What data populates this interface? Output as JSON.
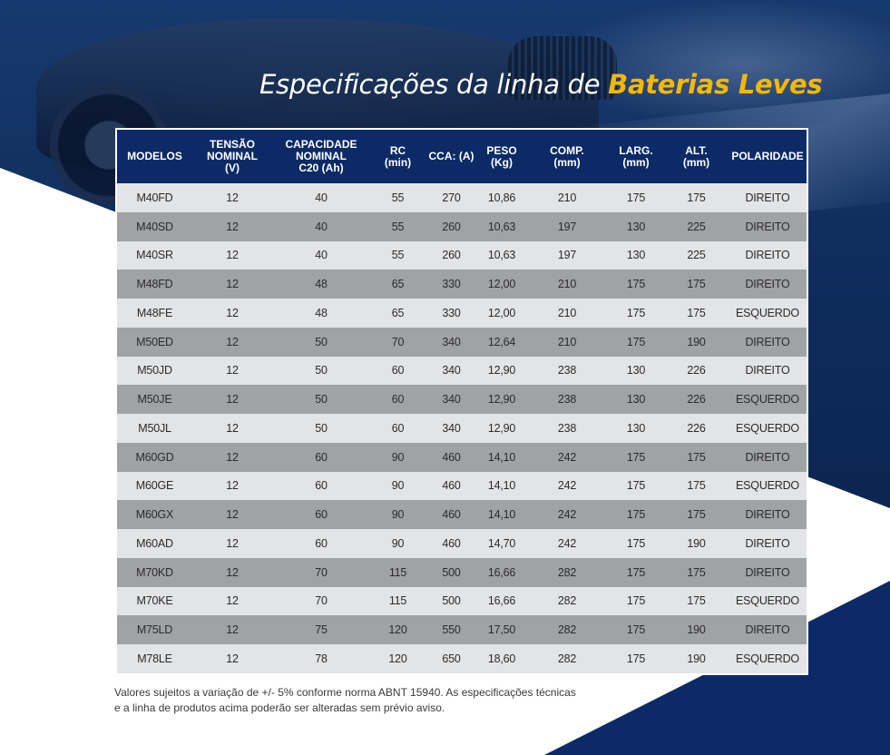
{
  "title": {
    "prefix": "Especificações da linha de",
    "highlight": "Baterias Leves"
  },
  "colors": {
    "navy": "#0b2a66",
    "accent": "#f5b800",
    "row_light": "#e3e4e6",
    "row_dark": "#a0a2a6"
  },
  "table": {
    "headers": [
      "MODELOS",
      "TENSÃO\nNOMINAL\n(V)",
      "CAPACIDADE\nNOMINAL\nC20 (Ah)",
      "RC\n(min)",
      "CCA: (A)",
      "PESO\n(Kg)",
      "COMP.\n(mm)",
      "LARG.\n(mm)",
      "ALT.\n(mm)",
      "POLARIDADE"
    ],
    "rows": [
      [
        "M40FD",
        "12",
        "40",
        "55",
        "270",
        "10,86",
        "210",
        "175",
        "175",
        "DIREITO"
      ],
      [
        "M40SD",
        "12",
        "40",
        "55",
        "260",
        "10,63",
        "197",
        "130",
        "225",
        "DIREITO"
      ],
      [
        "M40SR",
        "12",
        "40",
        "55",
        "260",
        "10,63",
        "197",
        "130",
        "225",
        "DIREITO"
      ],
      [
        "M48FD",
        "12",
        "48",
        "65",
        "330",
        "12,00",
        "210",
        "175",
        "175",
        "DIREITO"
      ],
      [
        "M48FE",
        "12",
        "48",
        "65",
        "330",
        "12,00",
        "210",
        "175",
        "175",
        "ESQUERDO"
      ],
      [
        "M50ED",
        "12",
        "50",
        "70",
        "340",
        "12,64",
        "210",
        "175",
        "190",
        "DIREITO"
      ],
      [
        "M50JD",
        "12",
        "50",
        "60",
        "340",
        "12,90",
        "238",
        "130",
        "226",
        "DIREITO"
      ],
      [
        "M50JE",
        "12",
        "50",
        "60",
        "340",
        "12,90",
        "238",
        "130",
        "226",
        "ESQUERDO"
      ],
      [
        "M50JL",
        "12",
        "50",
        "60",
        "340",
        "12,90",
        "238",
        "130",
        "226",
        "ESQUERDO"
      ],
      [
        "M60GD",
        "12",
        "60",
        "90",
        "460",
        "14,10",
        "242",
        "175",
        "175",
        "DIREITO"
      ],
      [
        "M60GE",
        "12",
        "60",
        "90",
        "460",
        "14,10",
        "242",
        "175",
        "175",
        "ESQUERDO"
      ],
      [
        "M60GX",
        "12",
        "60",
        "90",
        "460",
        "14,10",
        "242",
        "175",
        "175",
        "DIREITO"
      ],
      [
        "M60AD",
        "12",
        "60",
        "90",
        "460",
        "14,70",
        "242",
        "175",
        "190",
        "DIREITO"
      ],
      [
        "M70KD",
        "12",
        "70",
        "115",
        "500",
        "16,66",
        "282",
        "175",
        "175",
        "DIREITO"
      ],
      [
        "M70KE",
        "12",
        "70",
        "115",
        "500",
        "16,66",
        "282",
        "175",
        "175",
        "ESQUERDO"
      ],
      [
        "M75LD",
        "12",
        "75",
        "120",
        "550",
        "17,50",
        "282",
        "175",
        "190",
        "DIREITO"
      ],
      [
        "M78LE",
        "12",
        "78",
        "120",
        "650",
        "18,60",
        "282",
        "175",
        "190",
        "ESQUERDO"
      ]
    ]
  },
  "note": {
    "line1": "Valores sujeitos a variação de +/- 5% conforme norma ABNT 15940. As especificações técnicas",
    "line2": "e a linha de produtos acima poderão ser alteradas sem prévio aviso."
  }
}
